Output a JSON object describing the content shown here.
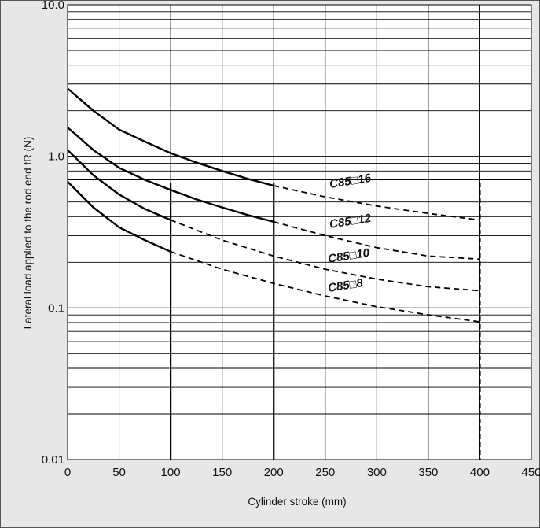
{
  "chart_data": {
    "type": "line",
    "title": "",
    "xlabel": "Cylinder stroke (mm)",
    "ylabel": "Lateral load applied to the rod end fR (N)",
    "x_scale": "linear",
    "y_scale": "log",
    "xlim": [
      0,
      450
    ],
    "ylim": [
      0.01,
      10.0
    ],
    "x_ticks": [
      "0",
      "50",
      "100",
      "150",
      "200",
      "250",
      "300",
      "350",
      "400",
      "450"
    ],
    "y_ticks": [
      "0.01",
      "0.1",
      "1.0",
      "10.0"
    ],
    "grid": true,
    "series": [
      {
        "name": "C85□16",
        "solid": [
          [
            0,
            2.8
          ],
          [
            25,
            2.0
          ],
          [
            50,
            1.5
          ],
          [
            75,
            1.25
          ],
          [
            100,
            1.05
          ],
          [
            125,
            0.91
          ],
          [
            150,
            0.8
          ],
          [
            175,
            0.71
          ],
          [
            200,
            0.64
          ]
        ],
        "dashed": [
          [
            200,
            0.64
          ],
          [
            250,
            0.54
          ],
          [
            300,
            0.47
          ],
          [
            350,
            0.42
          ],
          [
            400,
            0.38
          ]
        ]
      },
      {
        "name": "C85□12",
        "solid": [
          [
            0,
            1.55
          ],
          [
            25,
            1.1
          ],
          [
            50,
            0.84
          ],
          [
            75,
            0.7
          ],
          [
            100,
            0.6
          ],
          [
            125,
            0.52
          ],
          [
            150,
            0.46
          ],
          [
            175,
            0.41
          ],
          [
            200,
            0.37
          ]
        ],
        "dashed": [
          [
            200,
            0.37
          ],
          [
            250,
            0.3
          ],
          [
            300,
            0.25
          ],
          [
            350,
            0.22
          ],
          [
            400,
            0.21
          ]
        ]
      },
      {
        "name": "C85□10",
        "solid": [
          [
            0,
            1.1
          ],
          [
            25,
            0.75
          ],
          [
            50,
            0.56
          ],
          [
            75,
            0.45
          ],
          [
            100,
            0.38
          ]
        ],
        "dashed": [
          [
            100,
            0.38
          ],
          [
            150,
            0.28
          ],
          [
            200,
            0.22
          ],
          [
            250,
            0.18
          ],
          [
            300,
            0.155
          ],
          [
            350,
            0.138
          ],
          [
            400,
            0.13
          ]
        ]
      },
      {
        "name": "C85□8",
        "solid": [
          [
            0,
            0.68
          ],
          [
            25,
            0.46
          ],
          [
            50,
            0.34
          ],
          [
            75,
            0.28
          ],
          [
            100,
            0.235
          ]
        ],
        "dashed": [
          [
            100,
            0.235
          ],
          [
            150,
            0.18
          ],
          [
            200,
            0.145
          ],
          [
            250,
            0.12
          ],
          [
            300,
            0.102
          ],
          [
            350,
            0.09
          ],
          [
            400,
            0.081
          ]
        ]
      }
    ],
    "vertical_markers": [
      {
        "x": 100,
        "style": "solid"
      },
      {
        "x": 200,
        "style": "solid"
      },
      {
        "x": 400,
        "style": "dashed"
      }
    ]
  }
}
